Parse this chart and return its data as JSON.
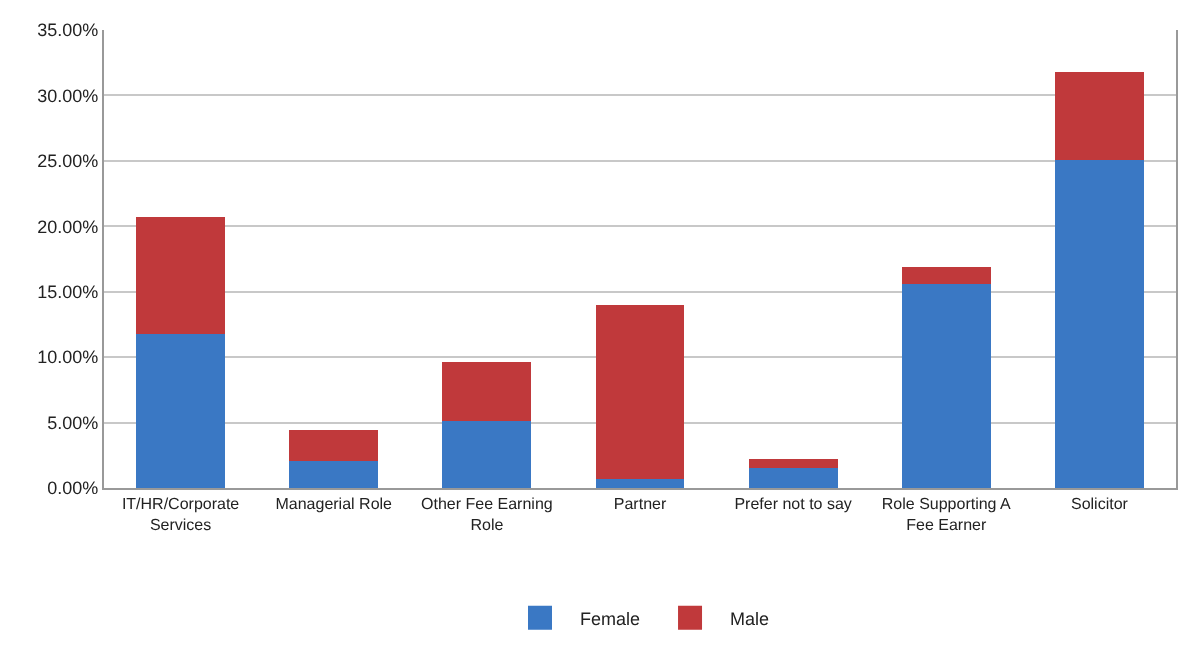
{
  "chart_data": {
    "type": "bar",
    "stacked": true,
    "categories": [
      "IT/HR/Corporate Services",
      "Managerial Role",
      "Other Fee Earning Role",
      "Partner",
      "Prefer not to say",
      "Role Supporting A Fee Earner",
      "Solicitor"
    ],
    "series": [
      {
        "name": "Female",
        "color": "#3a78c4",
        "values": [
          11.8,
          2.1,
          5.1,
          0.7,
          1.5,
          15.6,
          25.1
        ]
      },
      {
        "name": "Male",
        "color": "#c0393b",
        "values": [
          8.9,
          2.3,
          4.5,
          13.3,
          0.7,
          1.3,
          6.7
        ]
      }
    ],
    "ylim": [
      0,
      35
    ],
    "yticks": [
      {
        "value": 0,
        "label": "0.00%"
      },
      {
        "value": 5,
        "label": "5.00%"
      },
      {
        "value": 10,
        "label": "10.00%"
      },
      {
        "value": 15,
        "label": "15.00%"
      },
      {
        "value": 20,
        "label": "20.00%"
      },
      {
        "value": 25,
        "label": "25.00%"
      },
      {
        "value": 30,
        "label": "30.00%"
      },
      {
        "value": 35,
        "label": "35.00%"
      }
    ],
    "grid": "y",
    "legend": "bottom"
  }
}
